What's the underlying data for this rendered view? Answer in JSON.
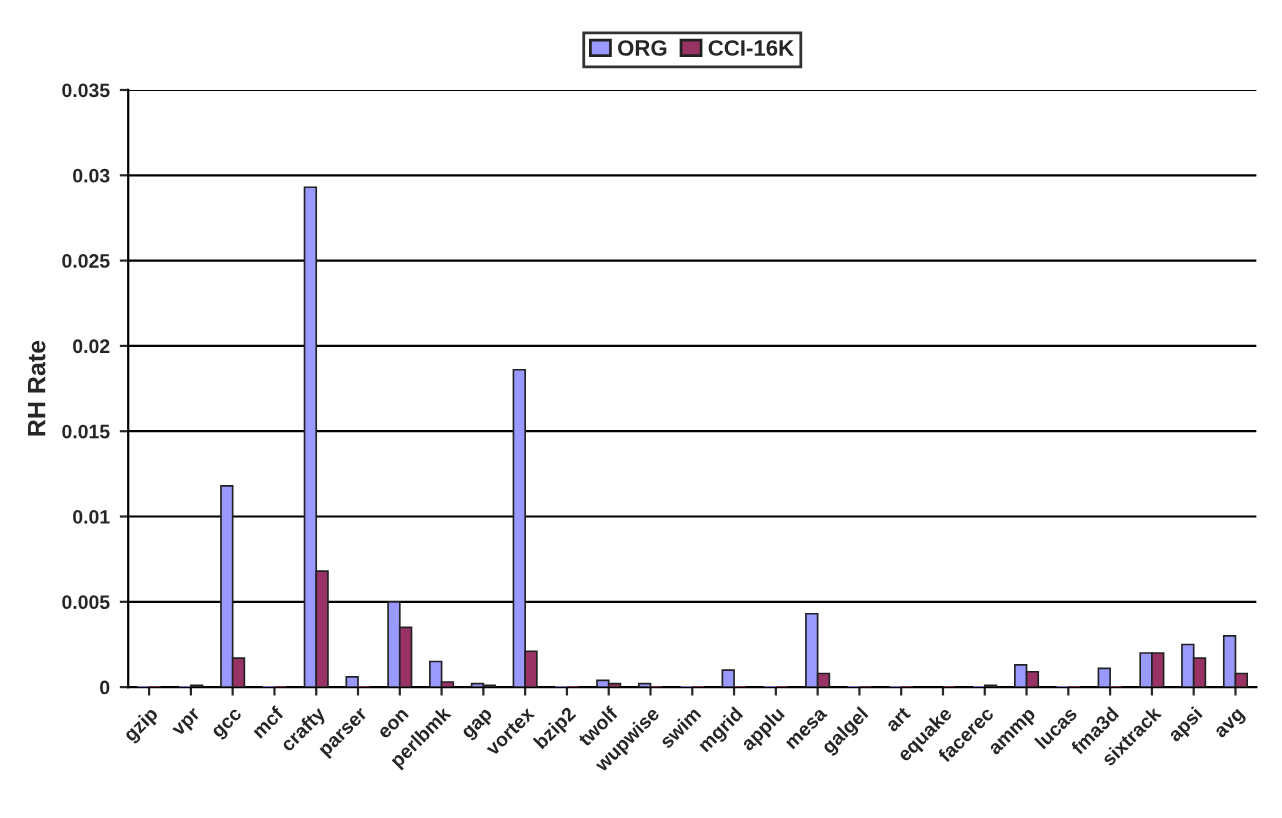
{
  "chart_data": {
    "type": "bar",
    "ylabel": "RH Rate",
    "categories": [
      "gzip",
      "vpr",
      "gcc",
      "mcf",
      "crafty",
      "parser",
      "eon",
      "perlbmk",
      "gap",
      "vortex",
      "bzip2",
      "twolf",
      "wupwise",
      "swim",
      "mgrid",
      "applu",
      "mesa",
      "galgel",
      "art",
      "equake",
      "facerec",
      "ammp",
      "lucas",
      "fma3d",
      "sixtrack",
      "apsi",
      "avg"
    ],
    "series": [
      {
        "name": "ORG",
        "color": "#9999ff",
        "values": [
          0,
          0,
          0.0118,
          0,
          0.0293,
          0.0006,
          0.005,
          0.0015,
          0.0002,
          0.0186,
          0,
          0.0004,
          0.0002,
          0,
          0.001,
          0,
          0.0043,
          0,
          0,
          null,
          0,
          0.0013,
          0,
          0.0011,
          0.002,
          0.0025,
          0.003
        ]
      },
      {
        "name": "CCI-16K",
        "color": "#993366",
        "values": [
          0,
          0.0001,
          0.0017,
          0,
          0.0068,
          0,
          0.0035,
          0.0003,
          0.0001,
          0.0021,
          0,
          0.0002,
          0,
          0,
          0,
          0,
          0.0008,
          0,
          0,
          0,
          0.0001,
          0.0009,
          0,
          0,
          0.002,
          0.0017,
          0.0008
        ]
      }
    ],
    "ylim": [
      0,
      0.035
    ],
    "yticks": [
      0,
      0.005,
      0.01,
      0.015,
      0.02,
      0.025,
      0.03,
      0.035
    ],
    "grid": "y",
    "legend": "top"
  }
}
